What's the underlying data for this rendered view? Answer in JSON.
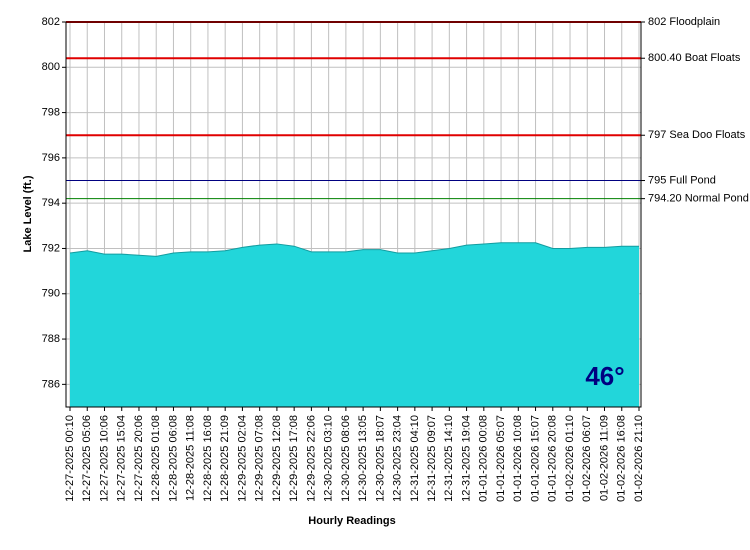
{
  "chart_data": {
    "type": "area",
    "y_label": "Lake Level (ft.)",
    "x_label": "Hourly Readings",
    "categories": [
      "12-27-2025 00:10",
      "12-27-2025 05:06",
      "12-27-2025 10:06",
      "12-27-2025 15:04",
      "12-27-2025 20:06",
      "12-28-2025 01:08",
      "12-28-2025 06:08",
      "12-28-2025 11:08",
      "12-28-2025 16:08",
      "12-28-2025 21:09",
      "12-29-2025 02:04",
      "12-29-2025 07:08",
      "12-29-2025 12:08",
      "12-29-2025 17:08",
      "12-29-2025 22:06",
      "12-30-2025 03:10",
      "12-30-2025 08:06",
      "12-30-2025 13:05",
      "12-30-2025 18:07",
      "12-30-2025 23:04",
      "12-31-2025 04:10",
      "12-31-2025 09:07",
      "12-31-2025 14:10",
      "12-31-2025 19:04",
      "01-01-2026 00:08",
      "01-01-2026 05:07",
      "01-01-2026 10:08",
      "01-01-2026 15:07",
      "01-01-2026 20:08",
      "01-02-2026 01:10",
      "01-02-2026 06:07",
      "01-02-2026 11:09",
      "01-02-2026 16:08",
      "01-02-2026 21:10"
    ],
    "values": [
      791.8,
      791.9,
      791.75,
      791.75,
      791.7,
      791.65,
      791.8,
      791.85,
      791.85,
      791.9,
      792.05,
      792.15,
      792.2,
      792.1,
      791.85,
      791.85,
      791.85,
      791.95,
      791.95,
      791.8,
      791.8,
      791.9,
      792.0,
      792.15,
      792.2,
      792.25,
      792.25,
      792.25,
      792.0,
      792.0,
      792.05,
      792.05,
      792.1,
      792.1
    ],
    "color": "#22d6da",
    "ylim": [
      785,
      802
    ],
    "yticks": [
      786,
      788,
      790,
      792,
      794,
      796,
      798,
      800,
      802
    ],
    "grid": true,
    "reference_lines": [
      {
        "value": 802,
        "label": "802 Floodplain",
        "color": "#e00000"
      },
      {
        "value": 800.4,
        "label": "800.40 Boat Floats",
        "color": "#e00000"
      },
      {
        "value": 797,
        "label": "797 Sea Doo Floats",
        "color": "#e00000"
      },
      {
        "value": 795,
        "label": "795 Full Pond",
        "color": "#000080"
      },
      {
        "value": 794.2,
        "label": "794.20 Normal Pond",
        "color": "#008000"
      }
    ],
    "annotation": "46°"
  }
}
